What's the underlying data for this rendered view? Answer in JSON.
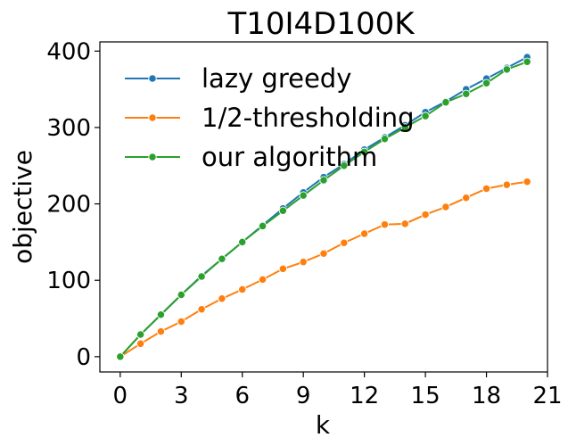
{
  "chart_data": {
    "type": "line",
    "title": "T10I4D100K",
    "xlabel": "k",
    "ylabel": "objective",
    "xlim": [
      -1,
      21
    ],
    "ylim": [
      -20,
      412
    ],
    "xticks": [
      0,
      3,
      6,
      9,
      12,
      15,
      18,
      21
    ],
    "yticks": [
      0,
      100,
      200,
      300,
      400
    ],
    "legend_position": "top-left",
    "x": [
      0,
      1,
      2,
      3,
      4,
      5,
      6,
      7,
      8,
      9,
      10,
      11,
      12,
      13,
      14,
      15,
      16,
      17,
      18,
      19,
      20
    ],
    "series": [
      {
        "name": "lazy greedy",
        "color": "#1f77b4",
        "values": [
          0,
          29,
          55,
          81,
          106,
          128,
          150,
          172,
          194,
          215,
          235,
          252,
          271,
          287,
          303,
          320,
          334,
          350,
          364,
          378,
          392
        ]
      },
      {
        "name": "1/2-thresholding",
        "color": "#ff7f0e",
        "values": [
          0,
          17,
          33,
          46,
          62,
          76,
          88,
          101,
          115,
          124,
          135,
          149,
          161,
          173,
          174,
          186,
          196,
          208,
          220,
          225,
          229
        ]
      },
      {
        "name": "our algorithm",
        "color": "#2ca02c",
        "values": [
          0,
          29,
          55,
          81,
          105,
          128,
          150,
          171,
          191,
          211,
          231,
          250,
          268,
          285,
          300,
          315,
          333,
          344,
          358,
          376,
          386
        ]
      }
    ]
  }
}
